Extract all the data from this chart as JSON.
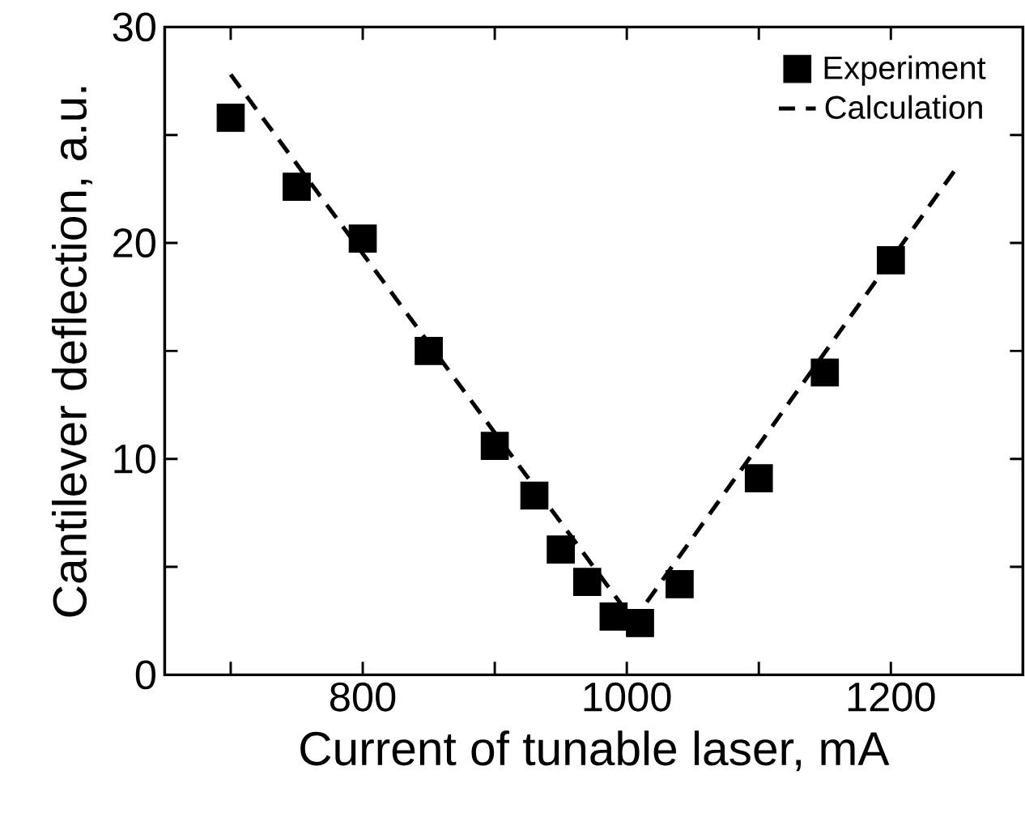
{
  "chart_data": {
    "type": "scatter",
    "xlabel": "Current of tunable laser, mA",
    "ylabel": "Cantilever deflection, a.u.",
    "xlim": [
      650,
      1300
    ],
    "ylim": [
      0,
      30
    ],
    "xticks": [
      {
        "value": 700,
        "label": null
      },
      800,
      {
        "value": 900,
        "label": null
      },
      1000,
      {
        "value": 1100,
        "label": null
      },
      1200
    ],
    "yticks": [
      0,
      {
        "value": 5,
        "label": null
      },
      10,
      {
        "value": 15,
        "label": null
      },
      20,
      {
        "value": 25,
        "label": null
      },
      30
    ],
    "legend": "top right",
    "series": [
      {
        "name": "Experiment",
        "color": "#000000",
        "marker": "square",
        "x": [
          700,
          750,
          800,
          850,
          900,
          930,
          950,
          970,
          990,
          1010,
          1040,
          1100,
          1150,
          1200
        ],
        "values": [
          25.8,
          22.6,
          20.2,
          15.0,
          10.6,
          8.3,
          5.8,
          4.3,
          2.7,
          2.4,
          4.2,
          9.1,
          14.0,
          19.2
        ]
      },
      {
        "name": "Calculation",
        "type": "line",
        "color": "#000000",
        "line_style": "dashed",
        "marker": "none",
        "x": [
          700,
          1005,
          1250
        ],
        "values": [
          27.8,
          2.5,
          23.5
        ]
      }
    ]
  }
}
